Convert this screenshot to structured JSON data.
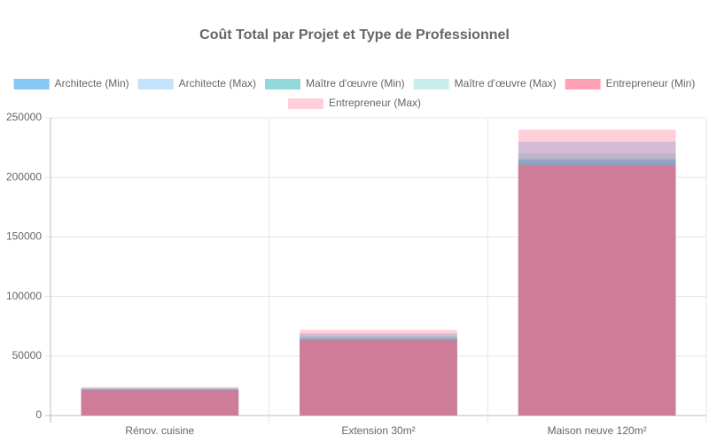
{
  "chart_data": {
    "type": "bar",
    "title": "Coût Total par Projet et Type de Professionnel",
    "categories": [
      "Rénov. cuisine",
      "Extension 30m²",
      "Maison neuve 120m²"
    ],
    "series": [
      {
        "name": "Architecte (Min)",
        "color": "rgba(54,162,235,0.6)",
        "values": [
          22000,
          65000,
          215000
        ]
      },
      {
        "name": "Architecte (Max)",
        "color": "rgba(54,162,235,0.3)",
        "values": [
          23000,
          69000,
          230000
        ]
      },
      {
        "name": "Maître d'œuvre (Min)",
        "color": "rgba(75,192,192,0.6)",
        "values": [
          21500,
          64000,
          212000
        ]
      },
      {
        "name": "Maître d'œuvre (Max)",
        "color": "rgba(75,192,192,0.3)",
        "values": [
          22500,
          67000,
          220000
        ]
      },
      {
        "name": "Entrepreneur (Min)",
        "color": "rgba(255,99,132,0.6)",
        "values": [
          21000,
          63000,
          210000
        ]
      },
      {
        "name": "Entrepreneur (Max)",
        "color": "rgba(255,99,132,0.3)",
        "values": [
          24000,
          72000,
          240000
        ]
      }
    ],
    "ylim": [
      0,
      250000
    ],
    "yticks": [
      0,
      50000,
      100000,
      150000,
      200000,
      250000
    ],
    "grid": true,
    "legend": "top"
  }
}
